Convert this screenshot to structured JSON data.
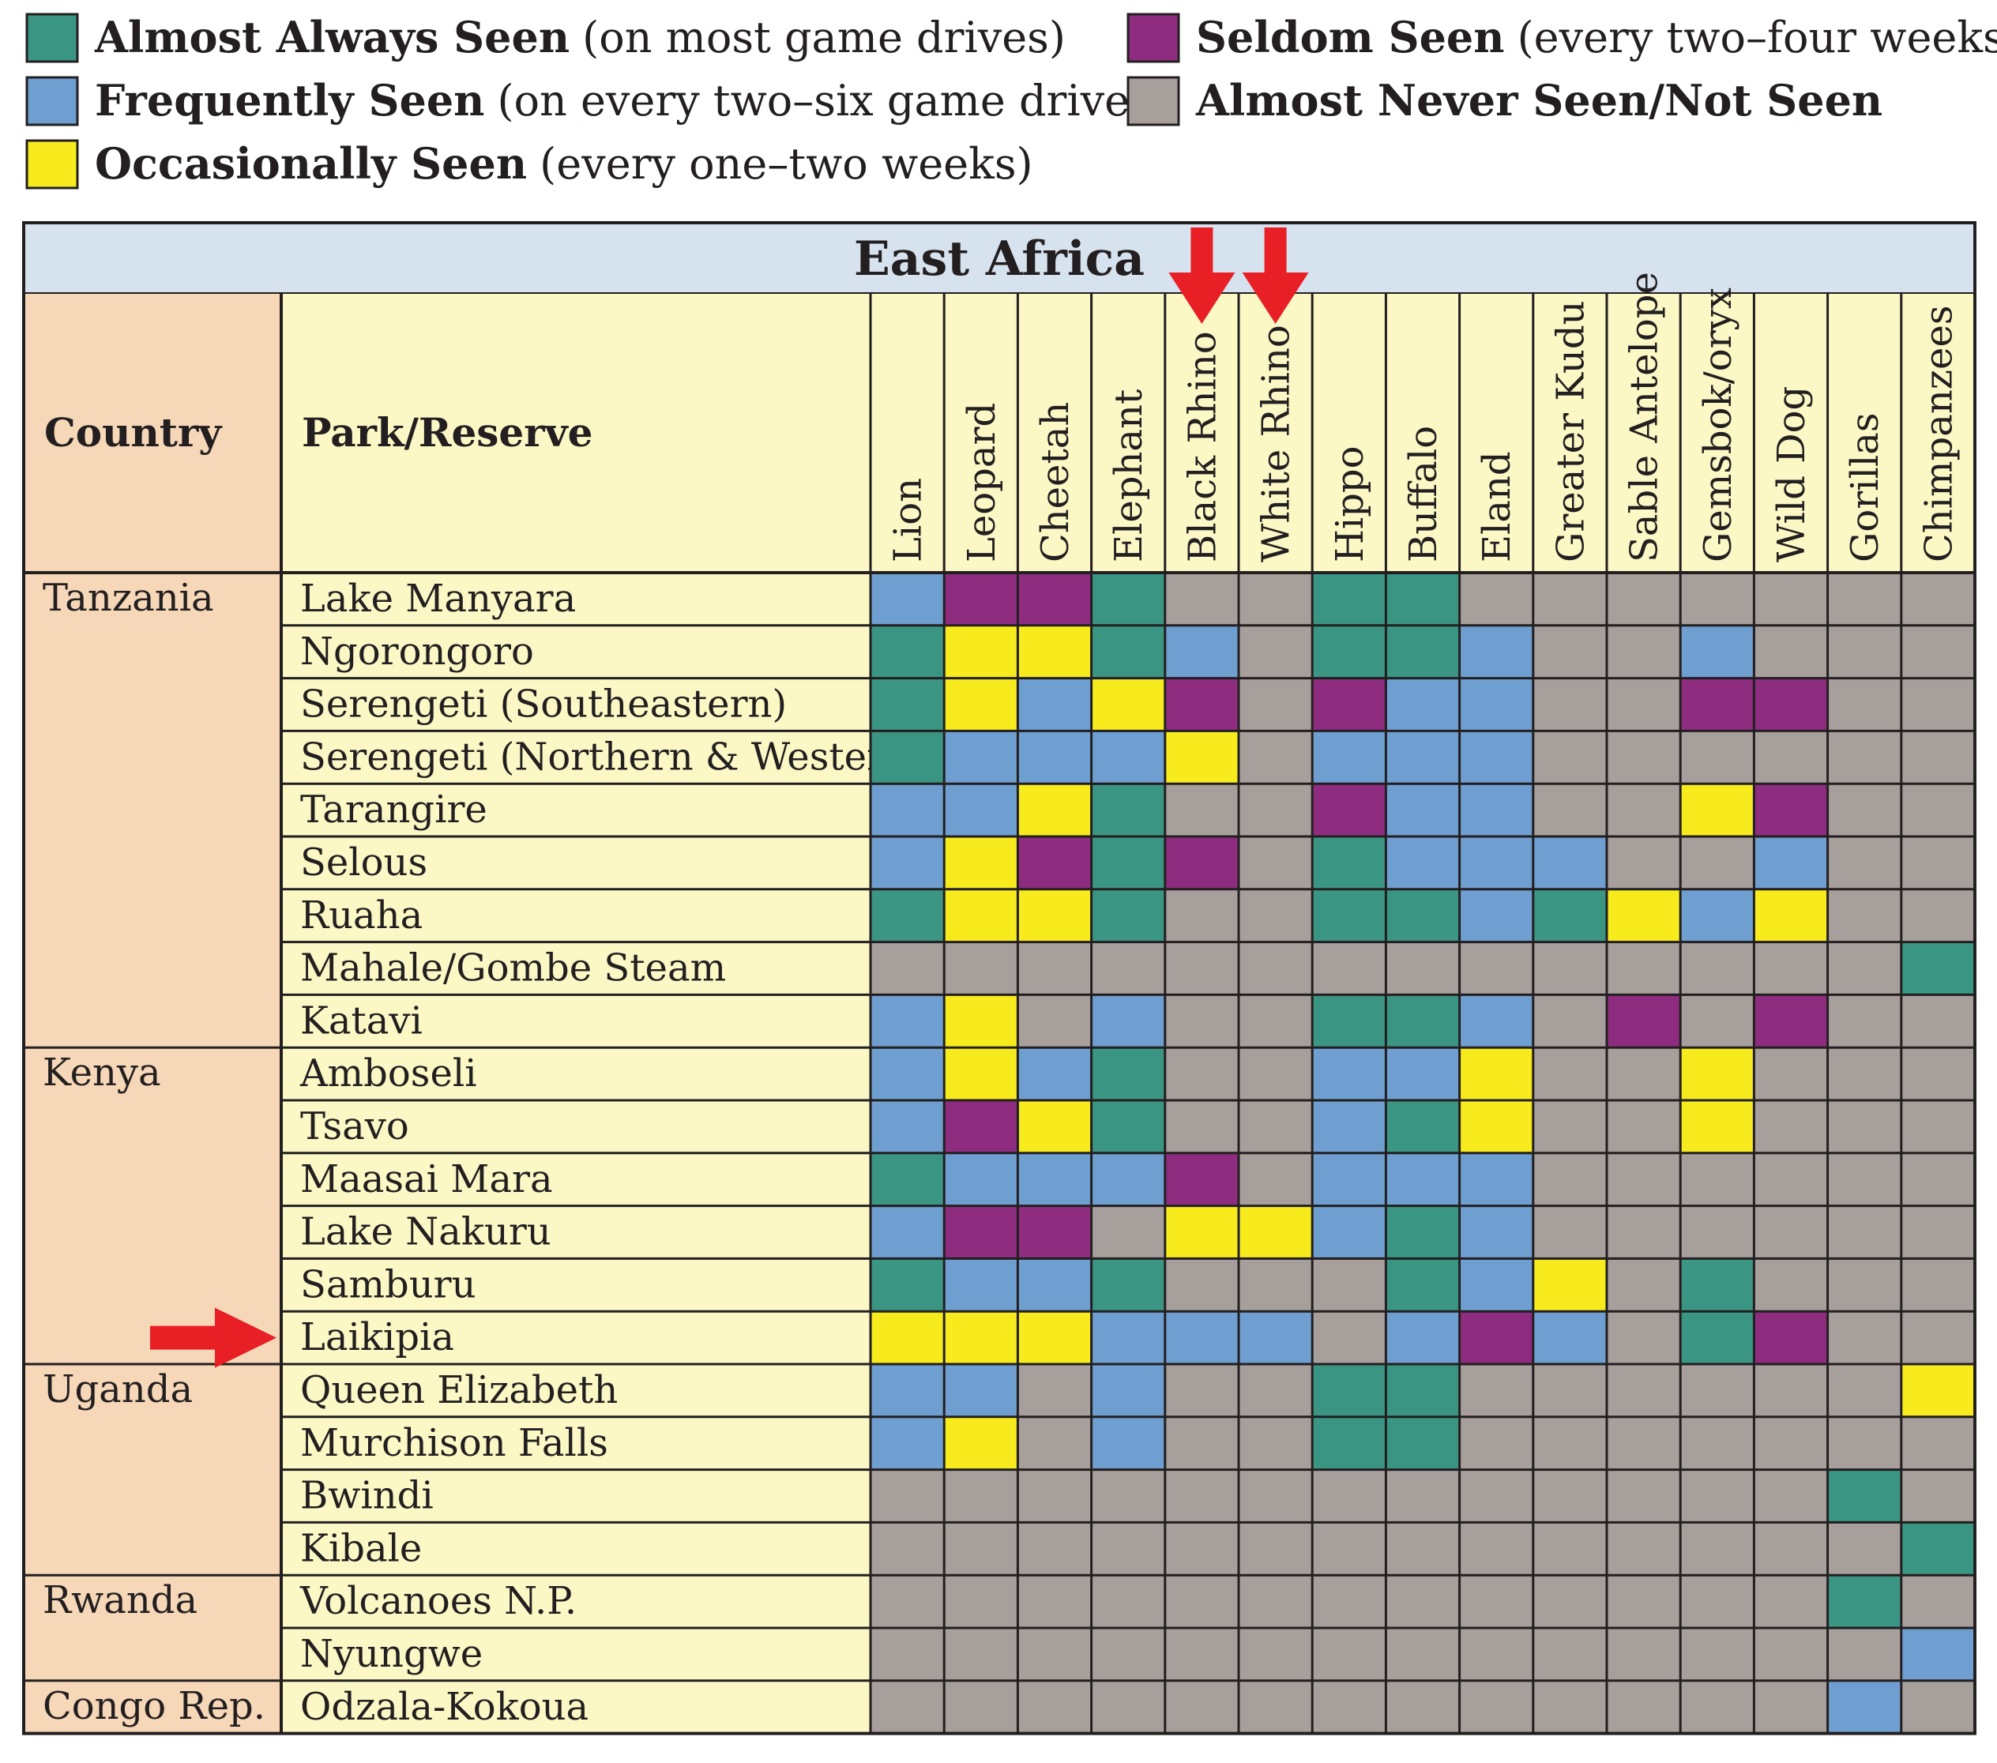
{
  "legend": [
    {
      "key": "A",
      "color": "#3a9683",
      "bold": "Almost Always Seen",
      "note": "(on most game drives)"
    },
    {
      "key": "F",
      "color": "#6e9fd0",
      "bold": "Frequently Seen",
      "note": "(on every two–six game drives)"
    },
    {
      "key": "O",
      "color": "#f7eb1d",
      "bold": "Occasionally Seen",
      "note": "(every one–two weeks)"
    },
    {
      "key": "S",
      "color": "#8e2d80",
      "bold": "Seldom Seen",
      "note": "(every two–four weeks)"
    },
    {
      "key": "N",
      "color": "#a79f9b",
      "bold": "Almost Never Seen/Not Seen",
      "note": ""
    }
  ],
  "colors": {
    "header_band": "#d7e2ef",
    "country_bg": "#f6d7b8",
    "park_bg": "#fbf8c6",
    "arrow": "#e81f25",
    "border": "#231f20"
  },
  "chart_data": {
    "type": "table",
    "title": "East Africa",
    "column_headers": [
      "Country",
      "Park/Reserve"
    ],
    "species": [
      "Lion",
      "Leopard",
      "Cheetah",
      "Elephant",
      "Black Rhino",
      "White Rhino",
      "Hippo",
      "Buffalo",
      "Eland",
      "Greater Kudu",
      "Sable Antelope",
      "Gemsbok/oryx",
      "Wild Dog",
      "Gorillas",
      "Chimpanzees"
    ],
    "highlighted_species": [
      "Black Rhino",
      "White Rhino"
    ],
    "highlighted_park": "Laikipia",
    "groups": [
      {
        "country": "Tanzania",
        "parks": [
          {
            "name": "Lake Manyara",
            "values": [
              "F",
              "S",
              "S",
              "A",
              "N",
              "N",
              "A",
              "A",
              "N",
              "N",
              "N",
              "N",
              "N",
              "N",
              "N"
            ]
          },
          {
            "name": "Ngorongoro",
            "values": [
              "A",
              "O",
              "O",
              "A",
              "F",
              "N",
              "A",
              "A",
              "F",
              "N",
              "N",
              "F",
              "N",
              "N",
              "N"
            ]
          },
          {
            "name": "Serengeti (Southeastern)",
            "values": [
              "A",
              "O",
              "F",
              "O",
              "S",
              "N",
              "S",
              "F",
              "F",
              "N",
              "N",
              "S",
              "S",
              "N",
              "N"
            ]
          },
          {
            "name": "Serengeti (Northern & Western)",
            "values": [
              "A",
              "F",
              "F",
              "F",
              "O",
              "N",
              "F",
              "F",
              "F",
              "N",
              "N",
              "N",
              "N",
              "N",
              "N"
            ]
          },
          {
            "name": "Tarangire",
            "values": [
              "F",
              "F",
              "O",
              "A",
              "N",
              "N",
              "S",
              "F",
              "F",
              "N",
              "N",
              "O",
              "S",
              "N",
              "N"
            ]
          },
          {
            "name": "Selous",
            "values": [
              "F",
              "O",
              "S",
              "A",
              "S",
              "N",
              "A",
              "F",
              "F",
              "F",
              "N",
              "N",
              "F",
              "N",
              "N"
            ]
          },
          {
            "name": "Ruaha",
            "values": [
              "A",
              "O",
              "O",
              "A",
              "N",
              "N",
              "A",
              "A",
              "F",
              "A",
              "O",
              "F",
              "O",
              "N",
              "N"
            ]
          },
          {
            "name": "Mahale/Gombe Steam",
            "values": [
              "N",
              "N",
              "N",
              "N",
              "N",
              "N",
              "N",
              "N",
              "N",
              "N",
              "N",
              "N",
              "N",
              "N",
              "A"
            ]
          },
          {
            "name": "Katavi",
            "values": [
              "F",
              "O",
              "N",
              "F",
              "N",
              "N",
              "A",
              "A",
              "F",
              "N",
              "S",
              "N",
              "S",
              "N",
              "N"
            ]
          }
        ]
      },
      {
        "country": "Kenya",
        "parks": [
          {
            "name": "Amboseli",
            "values": [
              "F",
              "O",
              "F",
              "A",
              "N",
              "N",
              "F",
              "F",
              "O",
              "N",
              "N",
              "O",
              "N",
              "N",
              "N"
            ]
          },
          {
            "name": "Tsavo",
            "values": [
              "F",
              "S",
              "O",
              "A",
              "N",
              "N",
              "F",
              "A",
              "O",
              "N",
              "N",
              "O",
              "N",
              "N",
              "N"
            ]
          },
          {
            "name": "Maasai Mara",
            "values": [
              "A",
              "F",
              "F",
              "F",
              "S",
              "N",
              "F",
              "F",
              "F",
              "N",
              "N",
              "N",
              "N",
              "N",
              "N"
            ]
          },
          {
            "name": "Lake Nakuru",
            "values": [
              "F",
              "S",
              "S",
              "N",
              "O",
              "O",
              "F",
              "A",
              "F",
              "N",
              "N",
              "N",
              "N",
              "N",
              "N"
            ]
          },
          {
            "name": "Samburu",
            "values": [
              "A",
              "F",
              "F",
              "A",
              "N",
              "N",
              "N",
              "A",
              "F",
              "O",
              "N",
              "A",
              "N",
              "N",
              "N"
            ]
          },
          {
            "name": "Laikipia",
            "values": [
              "O",
              "O",
              "O",
              "F",
              "F",
              "F",
              "N",
              "F",
              "S",
              "F",
              "N",
              "A",
              "S",
              "N",
              "N"
            ]
          }
        ]
      },
      {
        "country": "Uganda",
        "parks": [
          {
            "name": "Queen Elizabeth",
            "values": [
              "F",
              "F",
              "N",
              "F",
              "N",
              "N",
              "A",
              "A",
              "N",
              "N",
              "N",
              "N",
              "N",
              "N",
              "O"
            ]
          },
          {
            "name": "Murchison Falls",
            "values": [
              "F",
              "O",
              "N",
              "F",
              "N",
              "N",
              "A",
              "A",
              "N",
              "N",
              "N",
              "N",
              "N",
              "N",
              "N"
            ]
          },
          {
            "name": "Bwindi",
            "values": [
              "N",
              "N",
              "N",
              "N",
              "N",
              "N",
              "N",
              "N",
              "N",
              "N",
              "N",
              "N",
              "N",
              "A",
              "N"
            ]
          },
          {
            "name": "Kibale",
            "values": [
              "N",
              "N",
              "N",
              "N",
              "N",
              "N",
              "N",
              "N",
              "N",
              "N",
              "N",
              "N",
              "N",
              "N",
              "A"
            ]
          }
        ]
      },
      {
        "country": "Rwanda",
        "parks": [
          {
            "name": "Volcanoes N.P.",
            "values": [
              "N",
              "N",
              "N",
              "N",
              "N",
              "N",
              "N",
              "N",
              "N",
              "N",
              "N",
              "N",
              "N",
              "A",
              "N"
            ]
          },
          {
            "name": "Nyungwe",
            "values": [
              "N",
              "N",
              "N",
              "N",
              "N",
              "N",
              "N",
              "N",
              "N",
              "N",
              "N",
              "N",
              "N",
              "N",
              "F"
            ]
          }
        ]
      },
      {
        "country": "Congo Rep.",
        "parks": [
          {
            "name": "Odzala-Kokoua",
            "values": [
              "N",
              "N",
              "N",
              "N",
              "N",
              "N",
              "N",
              "N",
              "N",
              "N",
              "N",
              "N",
              "N",
              "F",
              "N"
            ]
          }
        ]
      }
    ]
  }
}
